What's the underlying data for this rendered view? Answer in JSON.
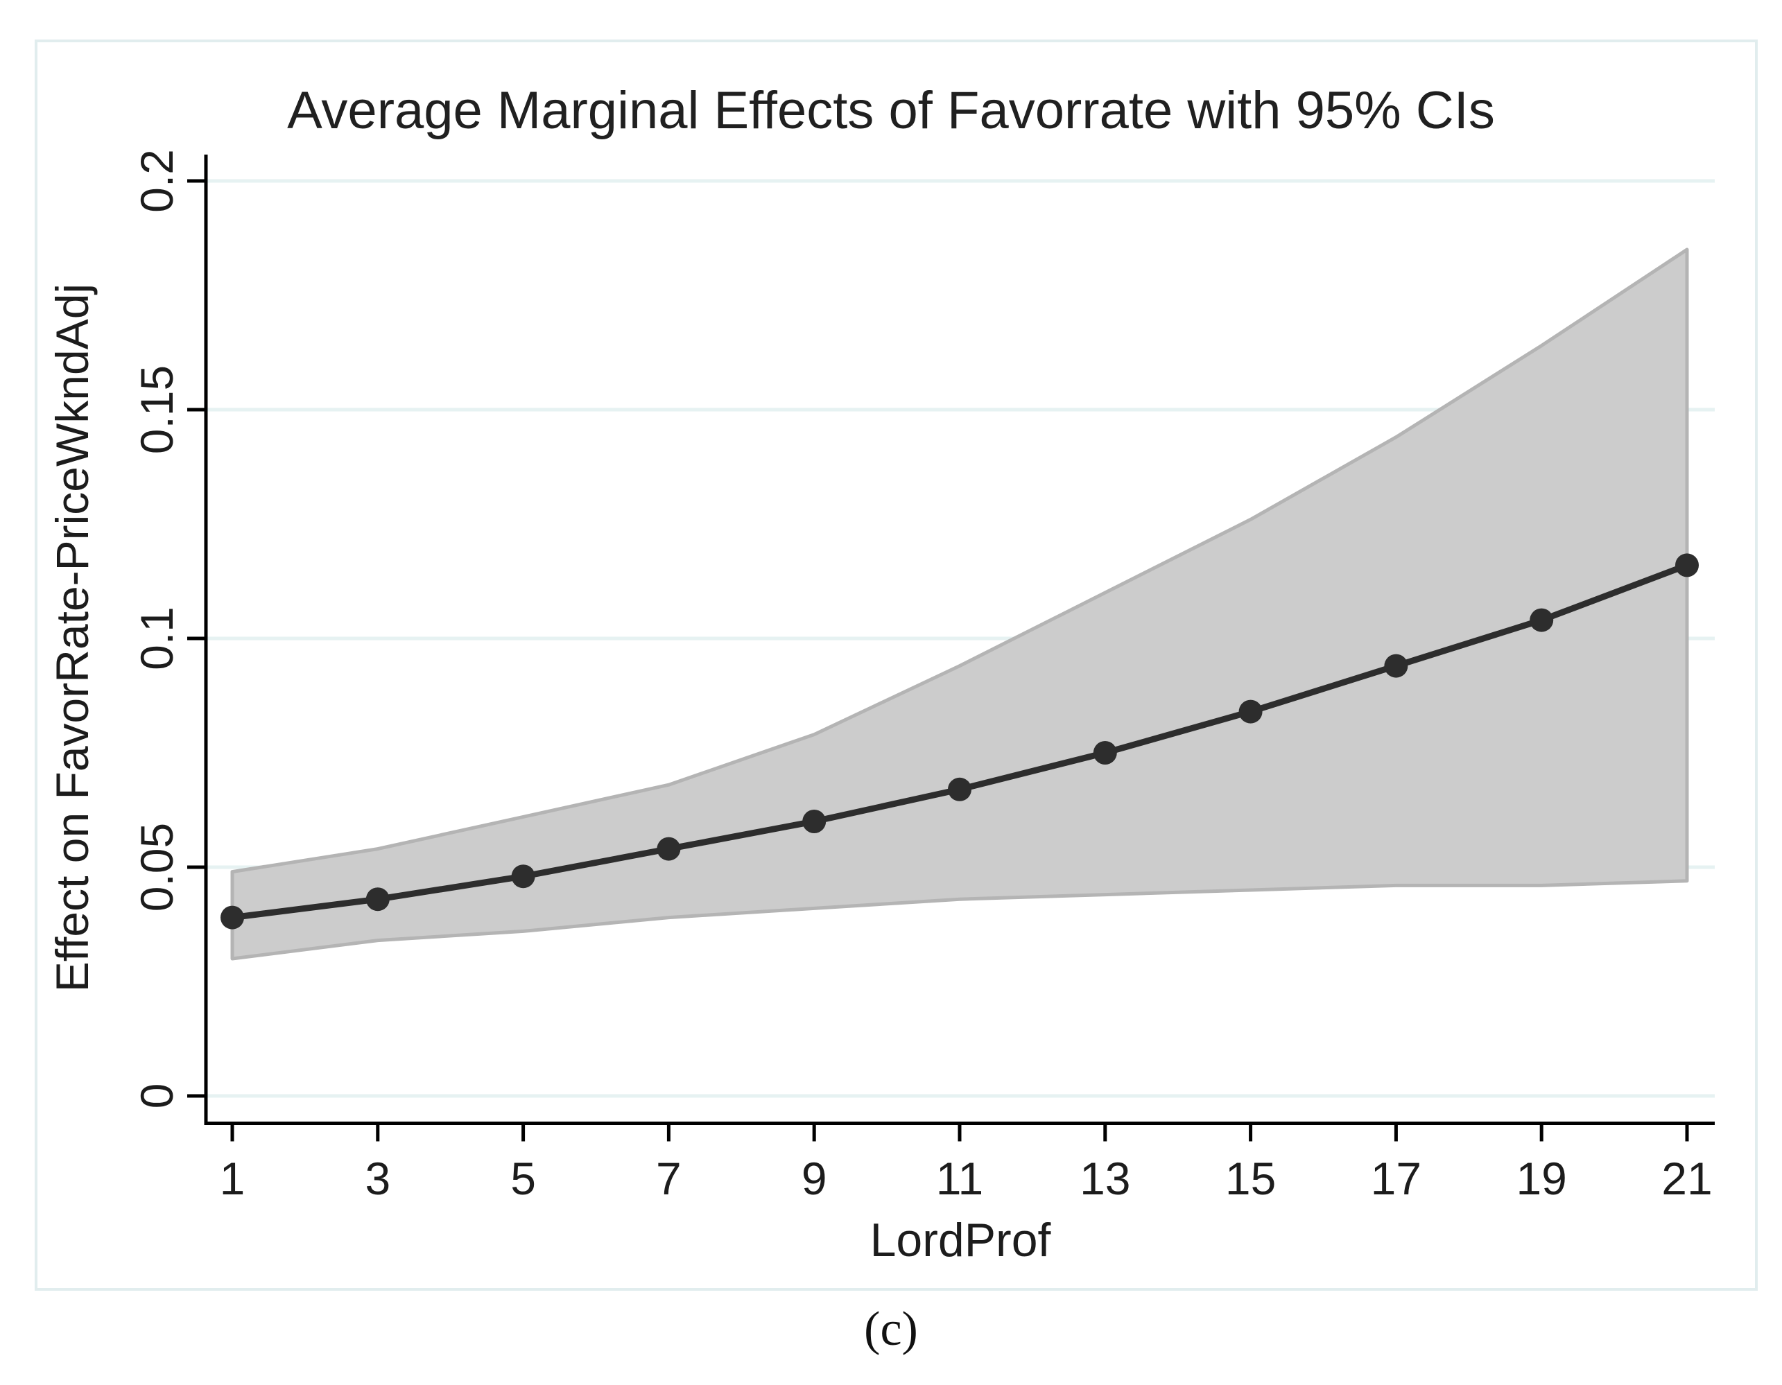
{
  "figure": {
    "title": "Average Marginal Effects of Favorrate with 95% CIs",
    "caption": "(c)"
  },
  "chart_data": {
    "type": "line",
    "title": "Average Marginal Effects of Favorrate with 95% CIs",
    "xlabel": "LordProf",
    "ylabel": "Effect on FavorRate-PriceWkndAdj",
    "x": [
      1,
      3,
      5,
      7,
      9,
      11,
      13,
      15,
      17,
      19,
      21
    ],
    "series": [
      {
        "name": "Average marginal effect of Favorrate",
        "values": [
          0.039,
          0.043,
          0.048,
          0.054,
          0.06,
          0.067,
          0.075,
          0.084,
          0.094,
          0.104,
          0.116
        ]
      },
      {
        "name": "95% CI lower bound",
        "values": [
          0.03,
          0.034,
          0.036,
          0.039,
          0.041,
          0.043,
          0.044,
          0.045,
          0.046,
          0.046,
          0.047
        ]
      },
      {
        "name": "95% CI upper bound",
        "values": [
          0.049,
          0.054,
          0.061,
          0.068,
          0.079,
          0.094,
          0.11,
          0.126,
          0.144,
          0.164,
          0.185
        ]
      }
    ],
    "x_tick_labels": [
      "1",
      "3",
      "5",
      "7",
      "9",
      "11",
      "13",
      "15",
      "17",
      "19",
      "21"
    ],
    "y_tick_labels": [
      "0",
      "0.05",
      "0.1",
      "0.15",
      "0.2"
    ],
    "y_tick_values": [
      0,
      0.05,
      0.1,
      0.15,
      0.2
    ],
    "xlim": [
      1,
      21
    ],
    "ylim": [
      0,
      0.2
    ],
    "grid": "horizontal",
    "legend": "none",
    "colors": {
      "ci_band_fill": "#cccccc",
      "ci_band_edge": "#b4b4b4",
      "line": "#2d2d2d",
      "marker": "#2d2d2d",
      "gridline": "#e6f2f2",
      "axis": "#000000",
      "figure_border": "#e1edee",
      "text": "#1c1c1c"
    }
  }
}
